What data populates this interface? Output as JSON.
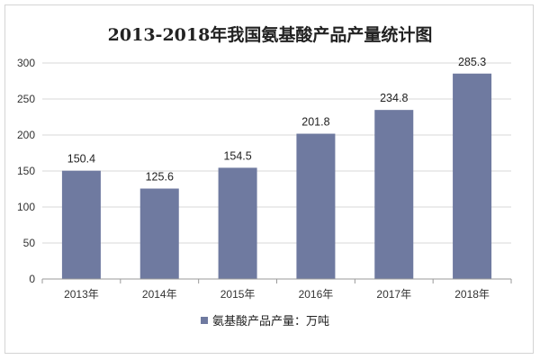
{
  "chart_data": {
    "type": "bar",
    "title": "2013-2018年我国氨基酸产品产量统计图",
    "categories": [
      "2013年",
      "2014年",
      "2015年",
      "2016年",
      "2017年",
      "2018年"
    ],
    "series": [
      {
        "name": "氨基酸产品产量：万吨",
        "values": [
          150.4,
          125.6,
          154.5,
          201.8,
          234.8,
          285.3
        ]
      }
    ],
    "data_labels": [
      "150.4",
      "125.6",
      "154.5",
      "201.8",
      "234.8",
      "285.3"
    ],
    "ylim": [
      0,
      300
    ],
    "yticks": [
      "0",
      "50",
      "100",
      "150",
      "200",
      "250",
      "300"
    ],
    "ytick_values": [
      0,
      50,
      100,
      150,
      200,
      250,
      300
    ],
    "grid": true,
    "legend_position": "bottom",
    "colors": {
      "bar": "#6f7aa0",
      "grid": "#d9d9d9",
      "axis": "#9a9a9a"
    }
  }
}
